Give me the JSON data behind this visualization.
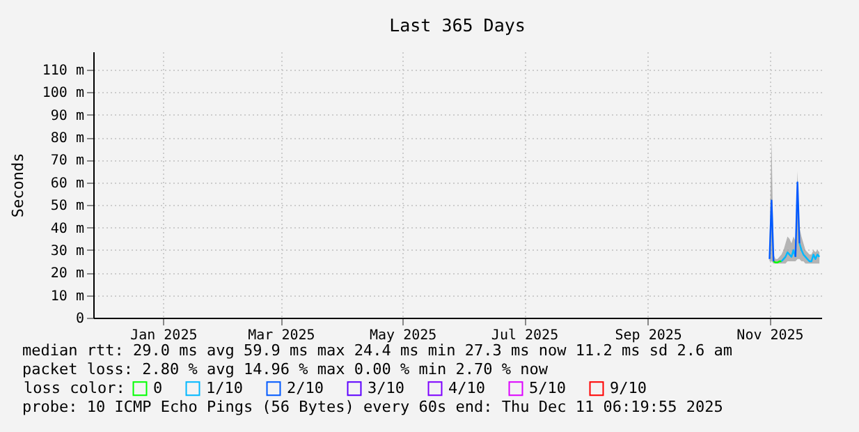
{
  "chart_data": {
    "type": "line",
    "title": "Last 365 Days",
    "ylabel": "Seconds",
    "legend_title": "loss color:",
    "legend": "bottom",
    "grid": true,
    "marker": "none",
    "line_style": "solid",
    "x": [
      "2025-11-15",
      "2025-11-16",
      "2025-11-17",
      "2025-11-18",
      "2025-11-19",
      "2025-11-20",
      "2025-11-21",
      "2025-11-22",
      "2025-11-23",
      "2025-11-24",
      "2025-11-25",
      "2025-11-26",
      "2025-11-27",
      "2025-11-28",
      "2025-11-29",
      "2025-11-30",
      "2025-12-01",
      "2025-12-02",
      "2025-12-03",
      "2025-12-04",
      "2025-12-05",
      "2025-12-06",
      "2025-12-07",
      "2025-12-08",
      "2025-12-09",
      "2025-12-10"
    ],
    "xlim": [
      "2024-12-11",
      "2025-12-11"
    ],
    "xticks": [
      {
        "value": "2025-01-15",
        "label": "Jan 2025"
      },
      {
        "value": "2025-03-15",
        "label": "Mar 2025"
      },
      {
        "value": "2025-05-15",
        "label": "May 2025"
      },
      {
        "value": "2025-07-15",
        "label": "Jul 2025"
      },
      {
        "value": "2025-09-15",
        "label": "Sep 2025"
      },
      {
        "value": "2025-11-15",
        "label": "Nov 2025"
      }
    ],
    "ylim": [
      0,
      118
    ],
    "yticks": [
      0,
      {
        "value": 10,
        "label": "10 m"
      },
      {
        "value": 20,
        "label": "20 m"
      },
      {
        "value": 30,
        "label": "30 m"
      },
      {
        "value": 40,
        "label": "40 m"
      },
      {
        "value": 50,
        "label": "50 m"
      },
      {
        "value": 60,
        "label": "60 m"
      },
      {
        "value": 70,
        "label": "70 m"
      },
      {
        "value": 80,
        "label": "80 m"
      },
      {
        "value": 90,
        "label": "90 m"
      },
      {
        "value": 100,
        "label": "100 m"
      },
      {
        "value": 110,
        "label": "110 m"
      }
    ],
    "series": [
      {
        "name": "0",
        "color": "#00ff00",
        "values": [
          null,
          null,
          25,
          24.5,
          24.5,
          25,
          25,
          null,
          null,
          null,
          null,
          null,
          null,
          null,
          null,
          null,
          null,
          null,
          null,
          null,
          null,
          null,
          null,
          null,
          null,
          null
        ]
      },
      {
        "name": "1/10",
        "color": "#00b8ff",
        "values": [
          null,
          null,
          null,
          null,
          null,
          null,
          25,
          26,
          27,
          29,
          28,
          27,
          30,
          27,
          null,
          33,
          30,
          28,
          27,
          26,
          25,
          25,
          28,
          26,
          28,
          27
        ],
        "lower": [
          25,
          25,
          24,
          24,
          24,
          24,
          24,
          24,
          24,
          25,
          25,
          25,
          25,
          25,
          26,
          26,
          25,
          25,
          24,
          24,
          24,
          24,
          24,
          24,
          24,
          24
        ],
        "upper": [
          34,
          79,
          28,
          26,
          26,
          27,
          28,
          30,
          33,
          36,
          35,
          33,
          36,
          34,
          65,
          40,
          36,
          33,
          30,
          29,
          28,
          28,
          30,
          29,
          30,
          29
        ]
      },
      {
        "name": "2/10",
        "color": "#0059ff",
        "values": [
          26,
          52,
          25,
          null,
          null,
          null,
          null,
          null,
          null,
          null,
          null,
          null,
          null,
          27,
          60,
          33,
          null,
          null,
          null,
          null,
          null,
          null,
          null,
          null,
          null,
          null
        ]
      },
      {
        "name": "3/10",
        "color": "#5e00ff",
        "values": [
          null,
          null,
          null,
          null,
          null,
          null,
          null,
          null,
          null,
          null,
          null,
          null,
          null,
          null,
          null,
          null,
          null,
          null,
          null,
          null,
          null,
          null,
          null,
          null,
          null,
          null
        ]
      },
      {
        "name": "4/10",
        "color": "#7e00ff",
        "values": [
          null,
          null,
          null,
          null,
          null,
          null,
          null,
          null,
          null,
          null,
          null,
          null,
          null,
          null,
          null,
          null,
          null,
          null,
          null,
          null,
          null,
          null,
          null,
          null,
          null,
          null
        ]
      },
      {
        "name": "5/10",
        "color": "#dd00ff",
        "values": [
          null,
          null,
          null,
          null,
          null,
          null,
          null,
          null,
          null,
          null,
          null,
          null,
          null,
          null,
          null,
          null,
          null,
          null,
          null,
          null,
          null,
          null,
          null,
          null,
          null,
          null
        ]
      },
      {
        "name": "9/10",
        "color": "#ff0000",
        "values": [
          null,
          null,
          null,
          null,
          null,
          null,
          null,
          null,
          null,
          null,
          null,
          null,
          null,
          null,
          null,
          null,
          null,
          null,
          null,
          null,
          null,
          null,
          null,
          null,
          null,
          null
        ]
      }
    ],
    "annotations": [
      "median rtt:  29.0 ms avg  59.9 ms max  24.4 ms min  27.3 ms now  11.2 ms sd  2.6   am",
      "packet loss: 2.80 % avg  14.96 % max  0.00 % min  2.70 % now",
      "probe:       10 ICMP Echo Pings (56 Bytes) every 60s   end: Thu Dec 11 06:19:55 2025"
    ]
  }
}
